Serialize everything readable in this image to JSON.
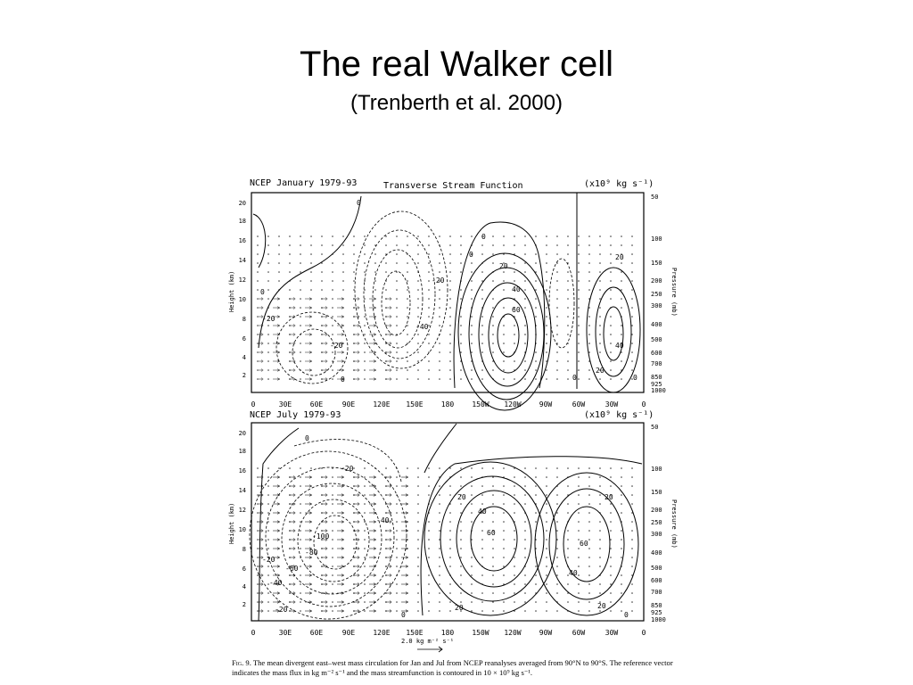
{
  "slide": {
    "title": "The real Walker cell",
    "subtitle": "(Trenberth et al. 2000)"
  },
  "figure": {
    "panel_top": {
      "left_title": "NCEP January 1979-93",
      "center_title": "Transverse Stream Function",
      "units": "(x10⁹ kg s⁻¹)"
    },
    "panel_bottom": {
      "left_title": "NCEP July 1979-93",
      "units": "(x10⁹ kg s⁻¹)"
    },
    "height_axis_label": "Height (km)",
    "pressure_axis_label": "Pressure (mb)",
    "height_ticks": [
      "20",
      "18",
      "16",
      "14",
      "12",
      "10",
      "8",
      "6",
      "4",
      "2"
    ],
    "pressure_ticks": [
      "50",
      "100",
      "150",
      "200",
      "250",
      "300",
      "400",
      "500",
      "600",
      "700",
      "850",
      "925",
      "1000"
    ],
    "lon_ticks": [
      "0",
      "30E",
      "60E",
      "90E",
      "120E",
      "150E",
      "180",
      "150W",
      "120W",
      "90W",
      "60W",
      "30W",
      "0"
    ],
    "reference_vector": "2.0 kg m⁻² s⁻¹",
    "top_contour_labels": [
      "0",
      "0",
      "0",
      "0",
      "20",
      "40",
      "60",
      "-20",
      "-40",
      "-20",
      "-20",
      "0",
      "20",
      "40",
      "20",
      "0",
      "0"
    ],
    "bottom_contour_labels": [
      "0",
      "-20",
      "-40",
      "-100",
      "-80",
      "-60",
      "-40",
      "-20",
      "-20",
      "20",
      "40",
      "60",
      "20",
      "60",
      "40",
      "20",
      "0",
      "0",
      "20"
    ]
  },
  "caption": {
    "fig_label": "Fig. 9.",
    "text": "The mean divergent east–west mass circulation for Jan and Jul from NCEP reanalyses averaged from 90°N to 90°S. The reference vector indicates the mass flux in kg m⁻² s⁻¹ and the mass streamfunction is contoured in 10 × 10⁹ kg s⁻¹."
  }
}
